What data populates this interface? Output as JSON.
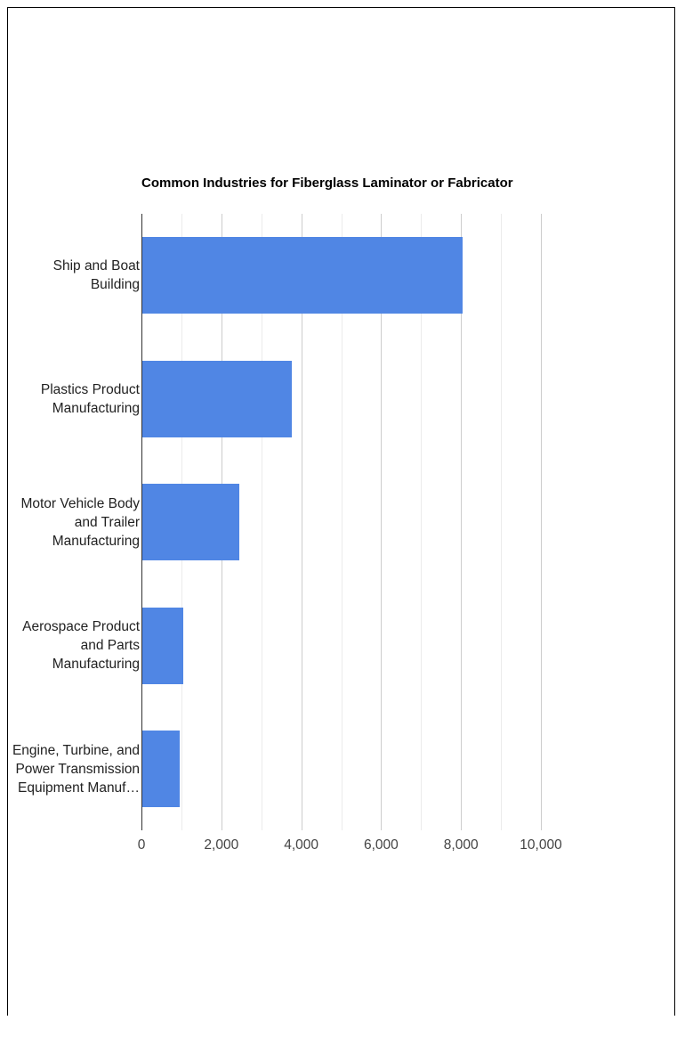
{
  "chart_data": {
    "type": "bar",
    "orientation": "horizontal",
    "title": "Common Industries for Fiberglass Laminator or Fabricator",
    "categories": [
      "Ship and Boat Building",
      "Plastics Product Manufacturing",
      "Motor Vehicle Body and Trailer Manufacturing",
      "Aerospace Product and Parts Manufacturing",
      "Engine, Turbine, and Power Transmission Equipment Manuf…"
    ],
    "category_lines": [
      [
        "Ship and Boat",
        "Building"
      ],
      [
        "Plastics Product",
        "Manufacturing"
      ],
      [
        "Motor Vehicle Body",
        "and Trailer",
        "Manufacturing"
      ],
      [
        "Aerospace Product",
        "and Parts",
        "Manufacturing"
      ],
      [
        "Engine, Turbine, and",
        "Power Transmission",
        "Equipment Manuf…"
      ]
    ],
    "values": [
      8050,
      3760,
      2450,
      1050,
      960
    ],
    "xlabel": "",
    "ylabel": "",
    "xlim": [
      0,
      10000
    ],
    "x_ticks": [
      "0",
      "2,000",
      "4,000",
      "6,000",
      "8,000",
      "10,000"
    ],
    "grid": true,
    "legend": "none",
    "bar_color": "#5086e4"
  }
}
